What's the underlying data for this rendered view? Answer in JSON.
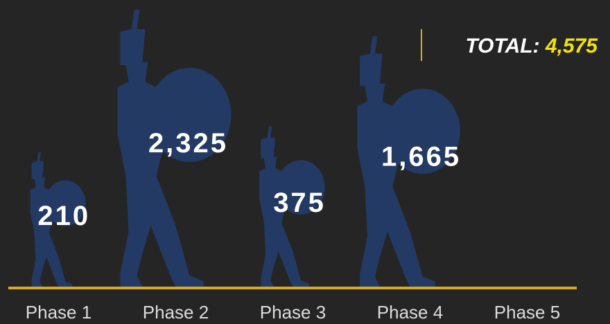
{
  "chart_data": {
    "type": "pictograph",
    "categories": [
      "Phase 1",
      "Phase 2",
      "Phase 3",
      "Phase 4",
      "Phase 5"
    ],
    "values": [
      210,
      2325,
      375,
      1665,
      null
    ],
    "value_labels": [
      "210",
      "2,325",
      "375",
      "1,665",
      null
    ],
    "color": "#233a64",
    "total": {
      "label": "TOTAL:",
      "value": 4575,
      "value_label": "4,575"
    }
  }
}
